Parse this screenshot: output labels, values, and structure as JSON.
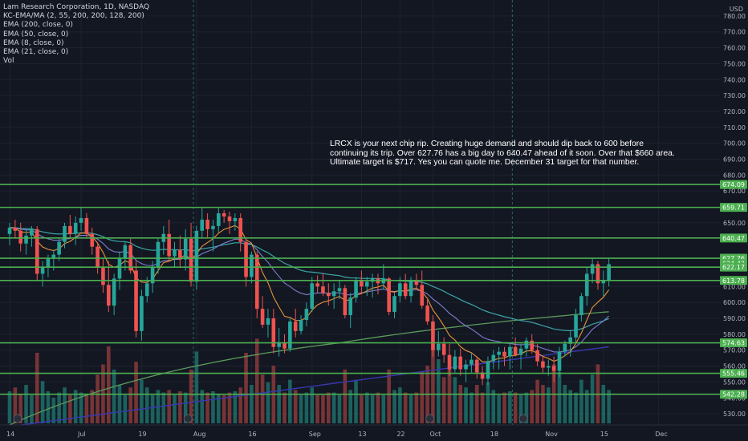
{
  "legend": {
    "title": "Lam Research Corporation, 1D, NASDAQ",
    "lines": [
      "KC-EMA/MA (2, 55, 200, 200, 128, 200)",
      "EMA (200, close, 0)",
      "EMA (50, close, 0)",
      "EMA (8, close, 0)",
      "EMA (21, close, 0)",
      "Vol"
    ]
  },
  "currency": "USD",
  "annotation": "LRCX is your next chip rip. Creating huge demand and should dip back to 600 before continuing its trip. Over 627.76 has a big day to 640.47 ahead of it soon. Over that $660 area. Ultimate target is $717. Yes you can quote me. December 31 target for that number.",
  "colors": {
    "background": "#131722",
    "up": "#26a69a",
    "down": "#ef5350",
    "level": "#4caf50",
    "ema200": "#5b9a5b",
    "ema50": "#3aa5a5",
    "ema8": "#e8943a",
    "ema21": "#7e7ecf",
    "kc": "#3838b0",
    "axis_text": "#b2b5be"
  },
  "chart_data": {
    "type": "candlestick",
    "symbol": "LRCX",
    "timeframe": "1D",
    "ylim": [
      523,
      790
    ],
    "y_ticks": [
      530,
      540,
      550,
      560,
      570,
      580,
      590,
      600,
      610,
      650,
      670,
      680,
      690,
      700,
      710,
      720,
      730,
      740,
      750,
      760,
      770,
      780
    ],
    "x_ticks": [
      {
        "label": "14",
        "bar": 0
      },
      {
        "label": "Jul",
        "bar": 13
      },
      {
        "label": "19",
        "bar": 24
      },
      {
        "label": "Aug",
        "bar": 34
      },
      {
        "label": "16",
        "bar": 44
      },
      {
        "label": "Sep",
        "bar": 55
      },
      {
        "label": "13",
        "bar": 64
      },
      {
        "label": "22",
        "bar": 71
      },
      {
        "label": "Oct",
        "bar": 77
      },
      {
        "label": "18",
        "bar": 88
      },
      {
        "label": "Nov",
        "bar": 98
      },
      {
        "label": "15",
        "bar": 108
      },
      {
        "label": "Dec",
        "bar": 118
      }
    ],
    "levels": [
      674.09,
      659.71,
      640.47,
      627.76,
      624.42,
      622.17,
      613.78,
      574.63,
      555.46,
      542.28
    ],
    "level_lines": [
      674.09,
      659.71,
      640.47,
      627.76,
      622.17,
      613.78,
      574.63,
      555.46,
      542.28
    ],
    "ohlc": [
      [
        643,
        650,
        636,
        647
      ],
      [
        647,
        652,
        640,
        645
      ],
      [
        645,
        650,
        632,
        637
      ],
      [
        637,
        646,
        630,
        642
      ],
      [
        642,
        648,
        635,
        646
      ],
      [
        646,
        648,
        614,
        618
      ],
      [
        618,
        626,
        610,
        622
      ],
      [
        622,
        630,
        616,
        628
      ],
      [
        628,
        633,
        620,
        630
      ],
      [
        630,
        640,
        626,
        638
      ],
      [
        638,
        650,
        634,
        648
      ],
      [
        648,
        655,
        640,
        643
      ],
      [
        643,
        654,
        636,
        650
      ],
      [
        650,
        660,
        645,
        653
      ],
      [
        653,
        656,
        641,
        643
      ],
      [
        643,
        647,
        630,
        635
      ],
      [
        635,
        638,
        618,
        622
      ],
      [
        622,
        628,
        606,
        611
      ],
      [
        611,
        626,
        594,
        598
      ],
      [
        598,
        618,
        592,
        615
      ],
      [
        615,
        632,
        608,
        628
      ],
      [
        628,
        638,
        620,
        636
      ],
      [
        636,
        640,
        618,
        620
      ],
      [
        620,
        626,
        578,
        582
      ],
      [
        582,
        608,
        576,
        604
      ],
      [
        604,
        616,
        600,
        612
      ],
      [
        612,
        626,
        606,
        622
      ],
      [
        622,
        640,
        618,
        638
      ],
      [
        638,
        648,
        630,
        643
      ],
      [
        643,
        652,
        626,
        629
      ],
      [
        629,
        638,
        622,
        633
      ],
      [
        633,
        642,
        622,
        627
      ],
      [
        627,
        646,
        620,
        640
      ],
      [
        640,
        650,
        610,
        613
      ],
      [
        613,
        648,
        608,
        645
      ],
      [
        645,
        660,
        640,
        652
      ],
      [
        652,
        656,
        641,
        646
      ],
      [
        646,
        652,
        632,
        648
      ],
      [
        648,
        660,
        644,
        656
      ],
      [
        656,
        658,
        650,
        654
      ],
      [
        654,
        657,
        643,
        651
      ],
      [
        651,
        656,
        645,
        653
      ],
      [
        653,
        656,
        632,
        638
      ],
      [
        638,
        640,
        610,
        616
      ],
      [
        616,
        632,
        612,
        630
      ],
      [
        630,
        632,
        590,
        596
      ],
      [
        596,
        604,
        584,
        586
      ],
      [
        586,
        596,
        578,
        590
      ],
      [
        590,
        596,
        568,
        572
      ],
      [
        572,
        584,
        566,
        575
      ],
      [
        575,
        580,
        568,
        571
      ],
      [
        571,
        590,
        569,
        588
      ],
      [
        588,
        596,
        578,
        582
      ],
      [
        582,
        592,
        580,
        589
      ],
      [
        589,
        600,
        585,
        596
      ],
      [
        596,
        616,
        594,
        612
      ],
      [
        612,
        617,
        606,
        610
      ],
      [
        610,
        618,
        604,
        606
      ],
      [
        606,
        612,
        598,
        604
      ],
      [
        604,
        612,
        596,
        607
      ],
      [
        607,
        614,
        602,
        609
      ],
      [
        609,
        611,
        590,
        592
      ],
      [
        592,
        606,
        584,
        603
      ],
      [
        603,
        616,
        600,
        614
      ],
      [
        614,
        620,
        605,
        610
      ],
      [
        610,
        616,
        604,
        613
      ],
      [
        613,
        618,
        603,
        615
      ],
      [
        615,
        618,
        605,
        612
      ],
      [
        612,
        624,
        608,
        615
      ],
      [
        615,
        616,
        592,
        594
      ],
      [
        594,
        606,
        590,
        604
      ],
      [
        604,
        616,
        600,
        612
      ],
      [
        612,
        618,
        602,
        604
      ],
      [
        604,
        616,
        600,
        614
      ],
      [
        614,
        618,
        608,
        611
      ],
      [
        611,
        620,
        596,
        598
      ],
      [
        598,
        602,
        586,
        588
      ],
      [
        588,
        592,
        566,
        570
      ],
      [
        570,
        582,
        566,
        574
      ],
      [
        574,
        578,
        562,
        567
      ],
      [
        567,
        574,
        554,
        558
      ],
      [
        558,
        570,
        556,
        566
      ],
      [
        566,
        571,
        554,
        558
      ],
      [
        558,
        564,
        550,
        561
      ],
      [
        561,
        568,
        556,
        564
      ],
      [
        564,
        566,
        552,
        556
      ],
      [
        556,
        560,
        548,
        552
      ],
      [
        552,
        566,
        548,
        563
      ],
      [
        563,
        570,
        558,
        567
      ],
      [
        567,
        572,
        558,
        569
      ],
      [
        569,
        572,
        560,
        566
      ],
      [
        566,
        574,
        558,
        572
      ],
      [
        572,
        578,
        566,
        567
      ],
      [
        567,
        574,
        558,
        571
      ],
      [
        571,
        578,
        566,
        576
      ],
      [
        576,
        580,
        568,
        570
      ],
      [
        570,
        574,
        560,
        563
      ],
      [
        563,
        566,
        556,
        559
      ],
      [
        559,
        564,
        554,
        560
      ],
      [
        560,
        566,
        550,
        557
      ],
      [
        557,
        572,
        553,
        569
      ],
      [
        569,
        576,
        566,
        574
      ],
      [
        574,
        582,
        566,
        578
      ],
      [
        578,
        596,
        574,
        592
      ],
      [
        592,
        606,
        588,
        604
      ],
      [
        604,
        622,
        598,
        618
      ],
      [
        618,
        628,
        612,
        624
      ],
      [
        624,
        626,
        608,
        612
      ],
      [
        612,
        620,
        604,
        614
      ],
      [
        614,
        628,
        610,
        624
      ]
    ],
    "volume_fraction": [
      0.25,
      0.28,
      0.23,
      0.3,
      0.22,
      0.55,
      0.33,
      0.25,
      0.2,
      0.24,
      0.28,
      0.22,
      0.26,
      0.24,
      0.22,
      0.26,
      0.38,
      0.46,
      0.6,
      0.42,
      0.3,
      0.22,
      0.28,
      0.48,
      0.34,
      0.28,
      0.22,
      0.26,
      0.24,
      0.26,
      0.22,
      0.25,
      0.24,
      0.42,
      0.56,
      0.26,
      0.24,
      0.25,
      0.23,
      0.22,
      0.24,
      0.25,
      0.28,
      0.55,
      0.3,
      0.66,
      0.38,
      0.32,
      0.45,
      0.3,
      0.24,
      0.34,
      0.26,
      0.22,
      0.24,
      0.28,
      0.22,
      0.22,
      0.24,
      0.24,
      0.22,
      0.42,
      0.26,
      0.34,
      0.22,
      0.24,
      0.22,
      0.24,
      0.22,
      0.42,
      0.26,
      0.28,
      0.24,
      0.22,
      0.24,
      0.4,
      0.45,
      0.62,
      0.5,
      0.36,
      0.44,
      0.36,
      0.3,
      0.28,
      0.24,
      0.3,
      0.24,
      0.32,
      0.26,
      0.22,
      0.24,
      0.25,
      0.24,
      0.22,
      0.24,
      0.26,
      0.34,
      0.3,
      0.28,
      0.46,
      0.4,
      0.3,
      0.26,
      0.24,
      0.34,
      0.26,
      0.38,
      0.46,
      0.3,
      0.26,
      0.24
    ]
  }
}
